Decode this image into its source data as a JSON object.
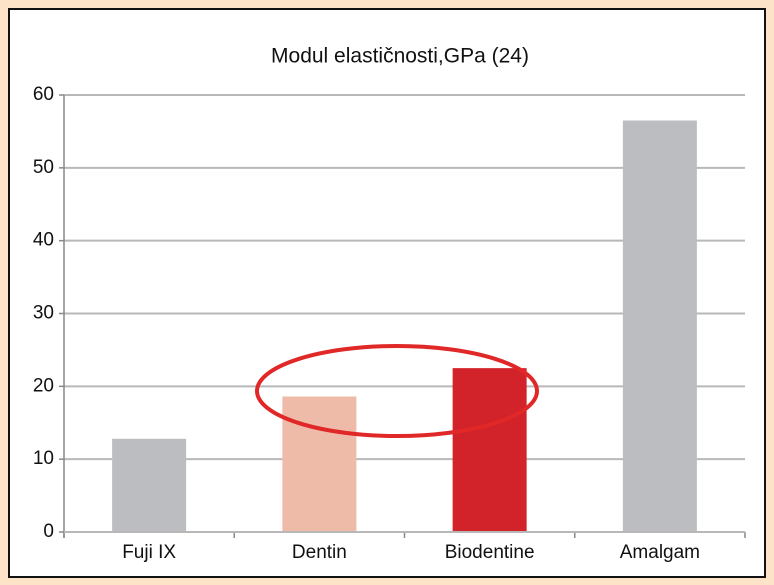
{
  "chart_data": {
    "type": "bar",
    "title": "Modul elastičnosti,GPa (24)",
    "categories": [
      "Fuji IX",
      "Dentin",
      "Biodentine",
      "Amalgam"
    ],
    "values": [
      12.8,
      18.6,
      22.5,
      56.5
    ],
    "colors": [
      "#bcbdc0",
      "#eebba8",
      "#d2232a",
      "#bcbdc0"
    ],
    "ylim": [
      0,
      60
    ],
    "yticks": [
      0,
      10,
      20,
      30,
      40,
      50,
      60
    ],
    "grid": true
  }
}
